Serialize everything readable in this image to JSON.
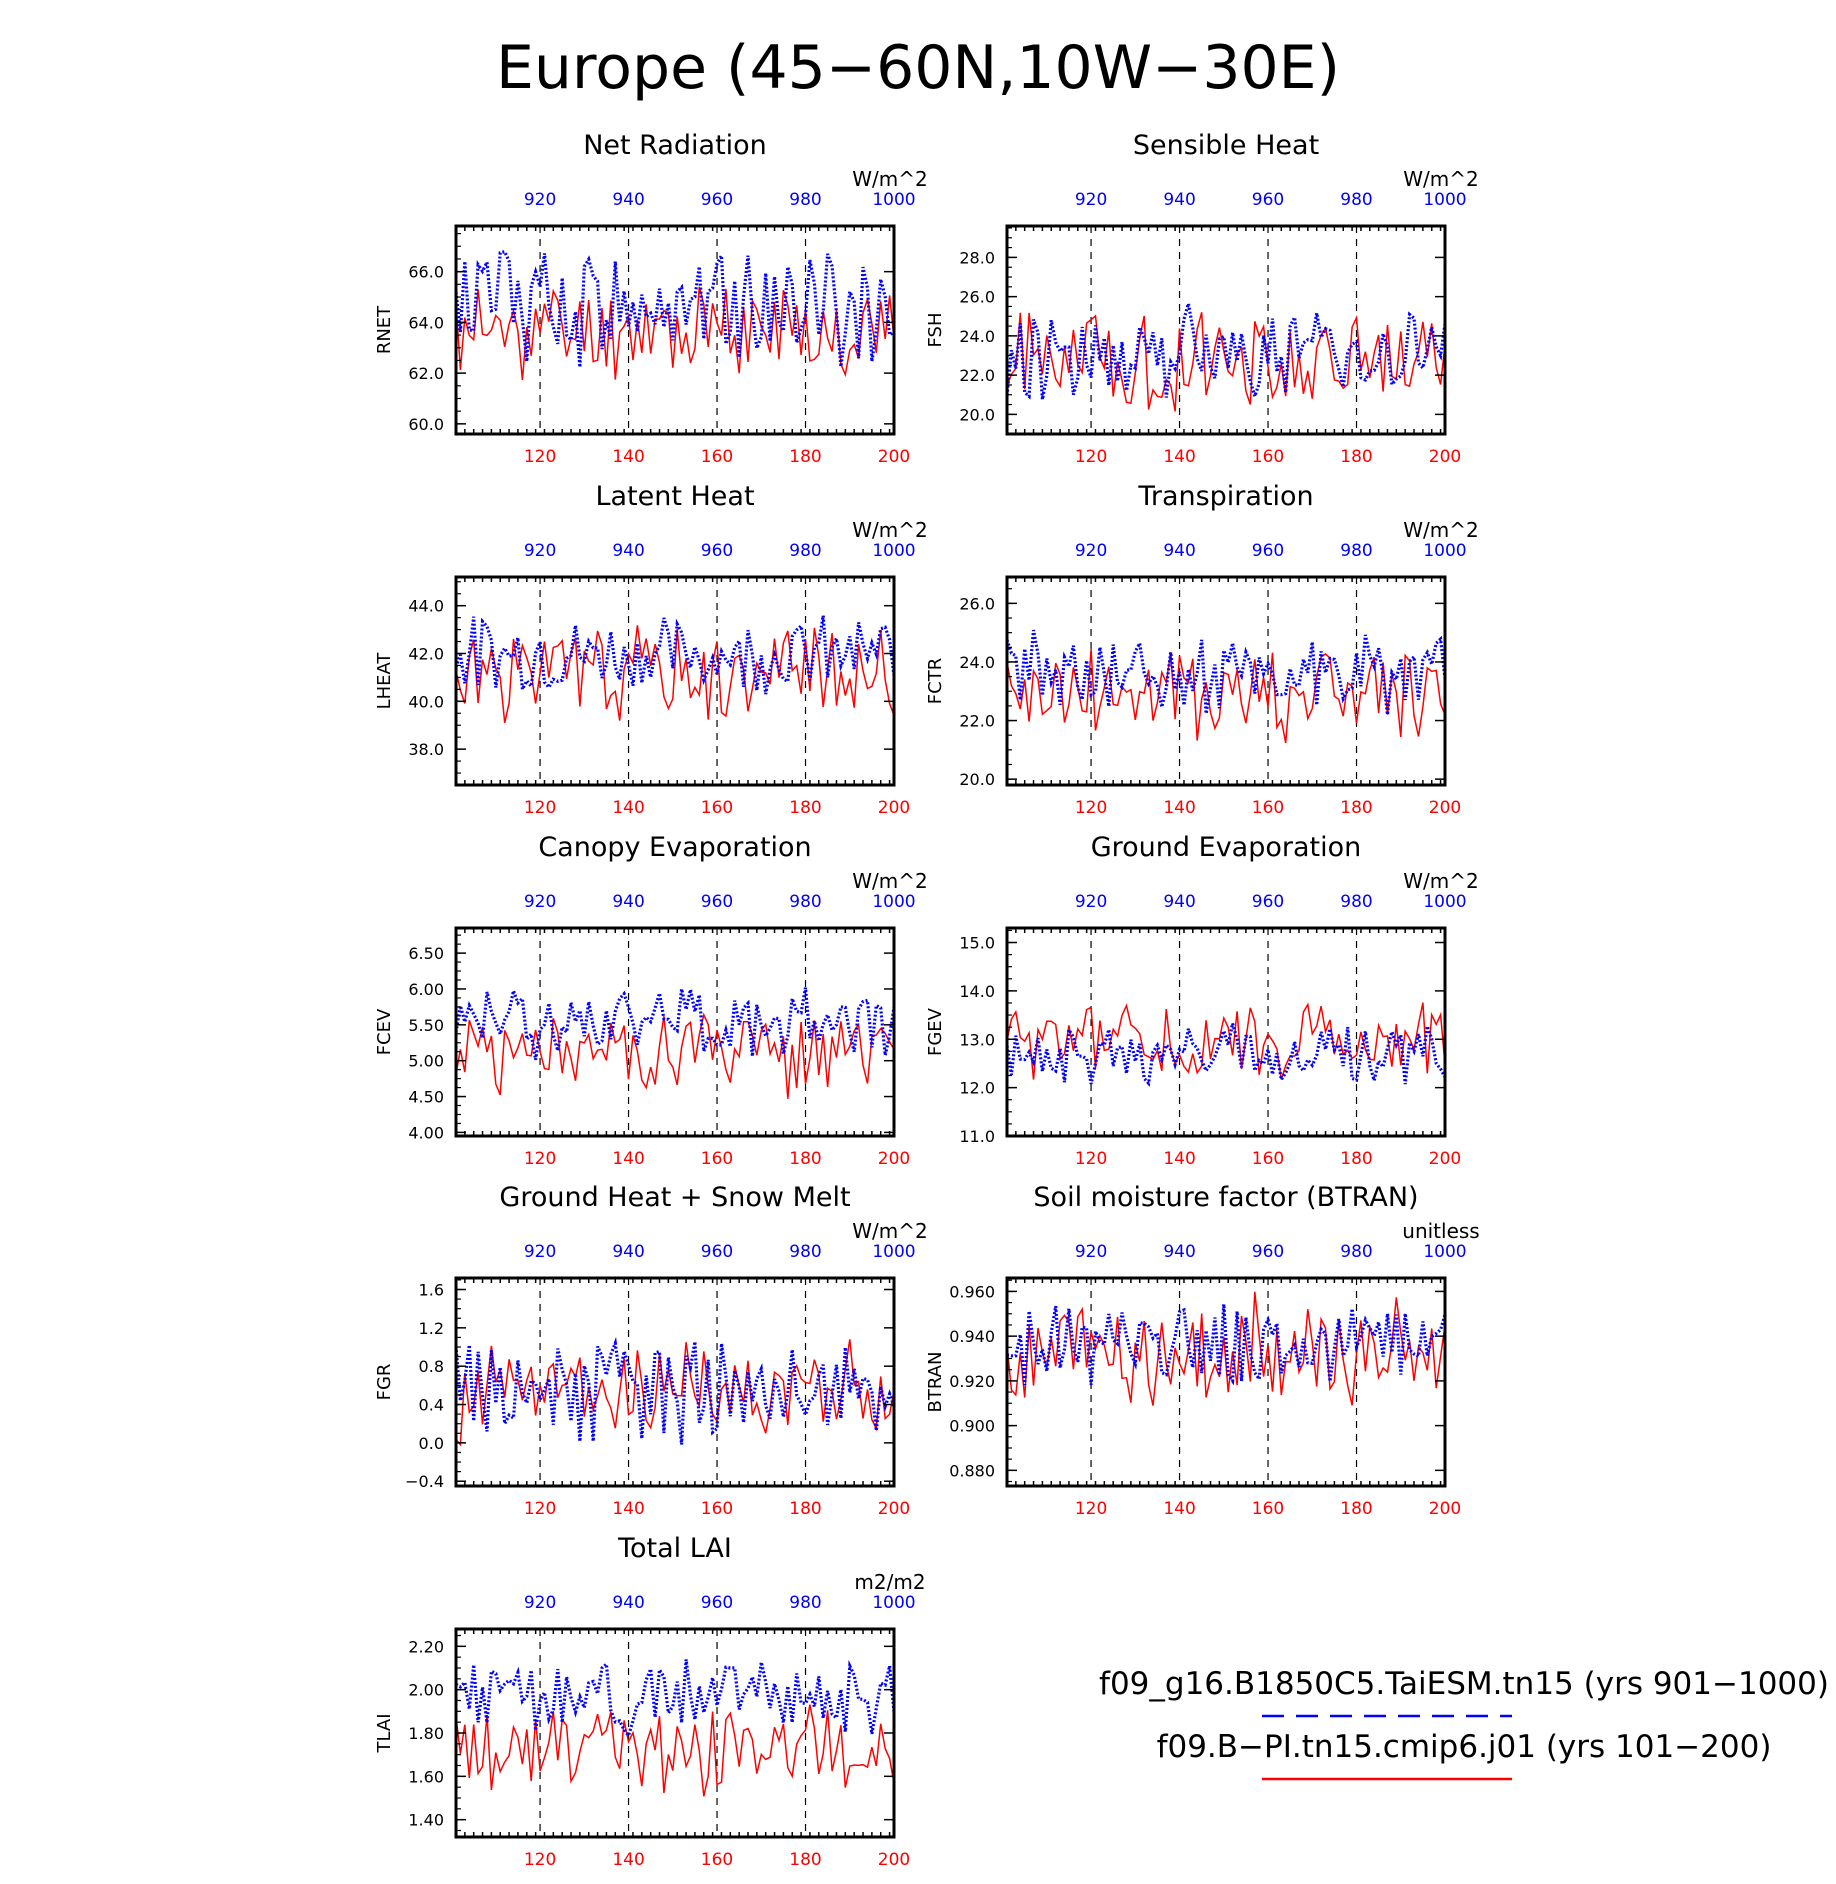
{
  "figure_title": "Europe (45−60N,10W−30E)",
  "colors": {
    "red_series": "#ff0000",
    "blue_series": "#0000ff",
    "axis": "#000000",
    "grid": "#000000"
  },
  "legend": {
    "entries": [
      {
        "label": "f09_g16.B1850C5.TaiESM.tn15 (yrs 901−1000)",
        "color": "#0000ff",
        "style": "dashed"
      },
      {
        "label": "f09.B−PI.tn15.cmip6.j01 (yrs 101−200)",
        "color": "#ff0000",
        "style": "solid"
      }
    ]
  },
  "chart_data": [
    {
      "type": "line",
      "title": "Net Radiation",
      "ylabel": "RNET",
      "units": "W/m^2",
      "ylim": [
        59.6,
        67.8
      ],
      "yticks": [
        "60.0",
        "62.0",
        "64.0",
        "66.0"
      ],
      "ytick_values": [
        60,
        62,
        64,
        66
      ],
      "x_bottom": {
        "range": [
          101,
          200
        ],
        "ticks": [
          "120",
          "140",
          "160",
          "180",
          "200"
        ],
        "tick_values": [
          120,
          140,
          160,
          180,
          200
        ]
      },
      "x_top": {
        "range": [
          901,
          1000
        ],
        "ticks": [
          "920",
          "940",
          "960",
          "980",
          "1000"
        ],
        "tick_values": [
          920,
          940,
          960,
          980,
          1000
        ]
      },
      "grid": "dashed vertical at 120,140,160,180",
      "series": [
        {
          "color": "red",
          "base": 63.7,
          "amp": 3.2,
          "seed": 11
        },
        {
          "color": "blue",
          "base": 64.8,
          "amp": 4.0,
          "seed": 12
        }
      ]
    },
    {
      "type": "line",
      "title": "Sensible Heat",
      "ylabel": "FSH",
      "units": "W/m^2",
      "ylim": [
        19.0,
        29.6
      ],
      "yticks": [
        "20.0",
        "22.0",
        "24.0",
        "26.0",
        "28.0"
      ],
      "ytick_values": [
        20,
        22,
        24,
        26,
        28
      ],
      "x_bottom": {
        "range": [
          101,
          200
        ],
        "ticks": [
          "120",
          "140",
          "160",
          "180",
          "200"
        ],
        "tick_values": [
          120,
          140,
          160,
          180,
          200
        ]
      },
      "x_top": {
        "range": [
          901,
          1000
        ],
        "ticks": [
          "920",
          "940",
          "960",
          "980",
          "1000"
        ],
        "tick_values": [
          920,
          940,
          960,
          980,
          1000
        ]
      },
      "grid": "dashed vertical at 120,140,160,180",
      "series": [
        {
          "color": "red",
          "base": 22.8,
          "amp": 4.2,
          "seed": 21
        },
        {
          "color": "blue",
          "base": 23.2,
          "amp": 4.0,
          "seed": 22
        }
      ]
    },
    {
      "type": "line",
      "title": "Latent Heat",
      "ylabel": "LHEAT",
      "units": "W/m^2",
      "ylim": [
        36.5,
        45.2
      ],
      "yticks": [
        "38.0",
        "40.0",
        "42.0",
        "44.0"
      ],
      "ytick_values": [
        38,
        40,
        42,
        44
      ],
      "x_bottom": {
        "range": [
          101,
          200
        ],
        "ticks": [
          "120",
          "140",
          "160",
          "180",
          "200"
        ],
        "tick_values": [
          120,
          140,
          160,
          180,
          200
        ]
      },
      "x_top": {
        "range": [
          901,
          1000
        ],
        "ticks": [
          "920",
          "940",
          "960",
          "980",
          "1000"
        ],
        "tick_values": [
          920,
          940,
          960,
          980,
          1000
        ]
      },
      "grid": "dashed vertical at 120,140,160,180",
      "series": [
        {
          "color": "red",
          "base": 41.2,
          "amp": 3.4,
          "seed": 31
        },
        {
          "color": "blue",
          "base": 42.0,
          "amp": 2.6,
          "seed": 32
        }
      ]
    },
    {
      "type": "line",
      "title": "Transpiration",
      "ylabel": "FCTR",
      "units": "W/m^2",
      "ylim": [
        19.8,
        26.9
      ],
      "yticks": [
        "20.0",
        "22.0",
        "24.0",
        "26.0"
      ],
      "ytick_values": [
        20,
        22,
        24,
        26
      ],
      "x_bottom": {
        "range": [
          101,
          200
        ],
        "ticks": [
          "120",
          "140",
          "160",
          "180",
          "200"
        ],
        "tick_values": [
          120,
          140,
          160,
          180,
          200
        ]
      },
      "x_top": {
        "range": [
          901,
          1000
        ],
        "ticks": [
          "920",
          "940",
          "960",
          "980",
          "1000"
        ],
        "tick_values": [
          920,
          940,
          960,
          980,
          1000
        ]
      },
      "grid": "dashed vertical at 120,140,160,180",
      "series": [
        {
          "color": "red",
          "base": 22.9,
          "amp": 3.0,
          "seed": 41
        },
        {
          "color": "blue",
          "base": 23.6,
          "amp": 2.4,
          "seed": 42
        }
      ]
    },
    {
      "type": "line",
      "title": "Canopy Evaporation",
      "ylabel": "FCEV",
      "units": "W/m^2",
      "ylim": [
        3.95,
        6.85
      ],
      "yticks": [
        "4.00",
        "4.50",
        "5.00",
        "5.50",
        "6.00",
        "6.50"
      ],
      "ytick_values": [
        4.0,
        4.5,
        5.0,
        5.5,
        6.0,
        6.5
      ],
      "x_bottom": {
        "range": [
          101,
          200
        ],
        "ticks": [
          "120",
          "140",
          "160",
          "180",
          "200"
        ],
        "tick_values": [
          120,
          140,
          160,
          180,
          200
        ]
      },
      "x_top": {
        "range": [
          901,
          1000
        ],
        "ticks": [
          "920",
          "940",
          "960",
          "980",
          "1000"
        ],
        "tick_values": [
          920,
          940,
          960,
          980,
          1000
        ]
      },
      "grid": "dashed vertical at 120,140,160,180",
      "series": [
        {
          "color": "red",
          "base": 5.1,
          "amp": 1.0,
          "seed": 51
        },
        {
          "color": "blue",
          "base": 5.55,
          "amp": 0.85,
          "seed": 52
        }
      ]
    },
    {
      "type": "line",
      "title": "Ground Evaporation",
      "ylabel": "FGEV",
      "units": "W/m^2",
      "ylim": [
        11.0,
        15.3
      ],
      "yticks": [
        "11.0",
        "12.0",
        "13.0",
        "14.0",
        "15.0"
      ],
      "ytick_values": [
        11,
        12,
        13,
        14,
        15
      ],
      "x_bottom": {
        "range": [
          101,
          200
        ],
        "ticks": [
          "120",
          "140",
          "160",
          "180",
          "200"
        ],
        "tick_values": [
          120,
          140,
          160,
          180,
          200
        ]
      },
      "x_top": {
        "range": [
          901,
          1000
        ],
        "ticks": [
          "920",
          "940",
          "960",
          "980",
          "1000"
        ],
        "tick_values": [
          920,
          940,
          960,
          980,
          1000
        ]
      },
      "grid": "dashed vertical at 120,140,160,180",
      "series": [
        {
          "color": "red",
          "base": 12.9,
          "amp": 1.4,
          "seed": 61
        },
        {
          "color": "blue",
          "base": 12.7,
          "amp": 1.0,
          "seed": 62
        }
      ]
    },
    {
      "type": "line",
      "title": "Ground Heat + Snow Melt",
      "ylabel": "FGR",
      "units": "W/m^2",
      "ylim": [
        -0.45,
        1.72
      ],
      "yticks": [
        "−0.4",
        "0.0",
        "0.4",
        "0.8",
        "1.2",
        "1.6"
      ],
      "ytick_values": [
        -0.4,
        0.0,
        0.4,
        0.8,
        1.2,
        1.6
      ],
      "x_bottom": {
        "range": [
          101,
          200
        ],
        "ticks": [
          "120",
          "140",
          "160",
          "180",
          "200"
        ],
        "tick_values": [
          120,
          140,
          160,
          180,
          200
        ]
      },
      "x_top": {
        "range": [
          901,
          1000
        ],
        "ticks": [
          "920",
          "940",
          "960",
          "980",
          "1000"
        ],
        "tick_values": [
          920,
          940,
          960,
          980,
          1000
        ]
      },
      "grid": "dashed vertical at 120,140,160,180",
      "series": [
        {
          "color": "red",
          "base": 0.55,
          "amp": 0.85,
          "seed": 71
        },
        {
          "color": "blue",
          "base": 0.55,
          "amp": 0.9,
          "seed": 72
        }
      ]
    },
    {
      "type": "line",
      "title": "Soil moisture factor (BTRAN)",
      "ylabel": "BTRAN",
      "units": "unitless",
      "ylim": [
        0.873,
        0.966
      ],
      "yticks": [
        "0.880",
        "0.900",
        "0.920",
        "0.940",
        "0.960"
      ],
      "ytick_values": [
        0.88,
        0.9,
        0.92,
        0.94,
        0.96
      ],
      "x_bottom": {
        "range": [
          101,
          200
        ],
        "ticks": [
          "120",
          "140",
          "160",
          "180",
          "200"
        ],
        "tick_values": [
          120,
          140,
          160,
          180,
          200
        ]
      },
      "x_top": {
        "range": [
          901,
          1000
        ],
        "ticks": [
          "920",
          "940",
          "960",
          "980",
          "1000"
        ],
        "tick_values": [
          920,
          940,
          960,
          980,
          1000
        ]
      },
      "grid": "dashed vertical at 120,140,160,180",
      "series": [
        {
          "color": "red",
          "base": 0.932,
          "amp": 0.045,
          "seed": 81
        },
        {
          "color": "blue",
          "base": 0.936,
          "amp": 0.03,
          "seed": 82
        }
      ]
    },
    {
      "type": "line",
      "title": "Total LAI",
      "ylabel": "TLAI",
      "units": "m2/m2",
      "ylim": [
        1.32,
        2.28
      ],
      "yticks": [
        "1.40",
        "1.60",
        "1.80",
        "2.00",
        "2.20"
      ],
      "ytick_values": [
        1.4,
        1.6,
        1.8,
        2.0,
        2.2
      ],
      "x_bottom": {
        "range": [
          101,
          200
        ],
        "ticks": [
          "120",
          "140",
          "160",
          "180",
          "200"
        ],
        "tick_values": [
          120,
          140,
          160,
          180,
          200
        ]
      },
      "x_top": {
        "range": [
          901,
          1000
        ],
        "ticks": [
          "920",
          "940",
          "960",
          "980",
          "1000"
        ],
        "tick_values": [
          920,
          940,
          960,
          980,
          1000
        ]
      },
      "grid": "dashed vertical at 120,140,160,180",
      "series": [
        {
          "color": "red",
          "base": 1.72,
          "amp": 0.36,
          "seed": 91
        },
        {
          "color": "blue",
          "base": 1.97,
          "amp": 0.28,
          "seed": 92
        }
      ]
    }
  ]
}
